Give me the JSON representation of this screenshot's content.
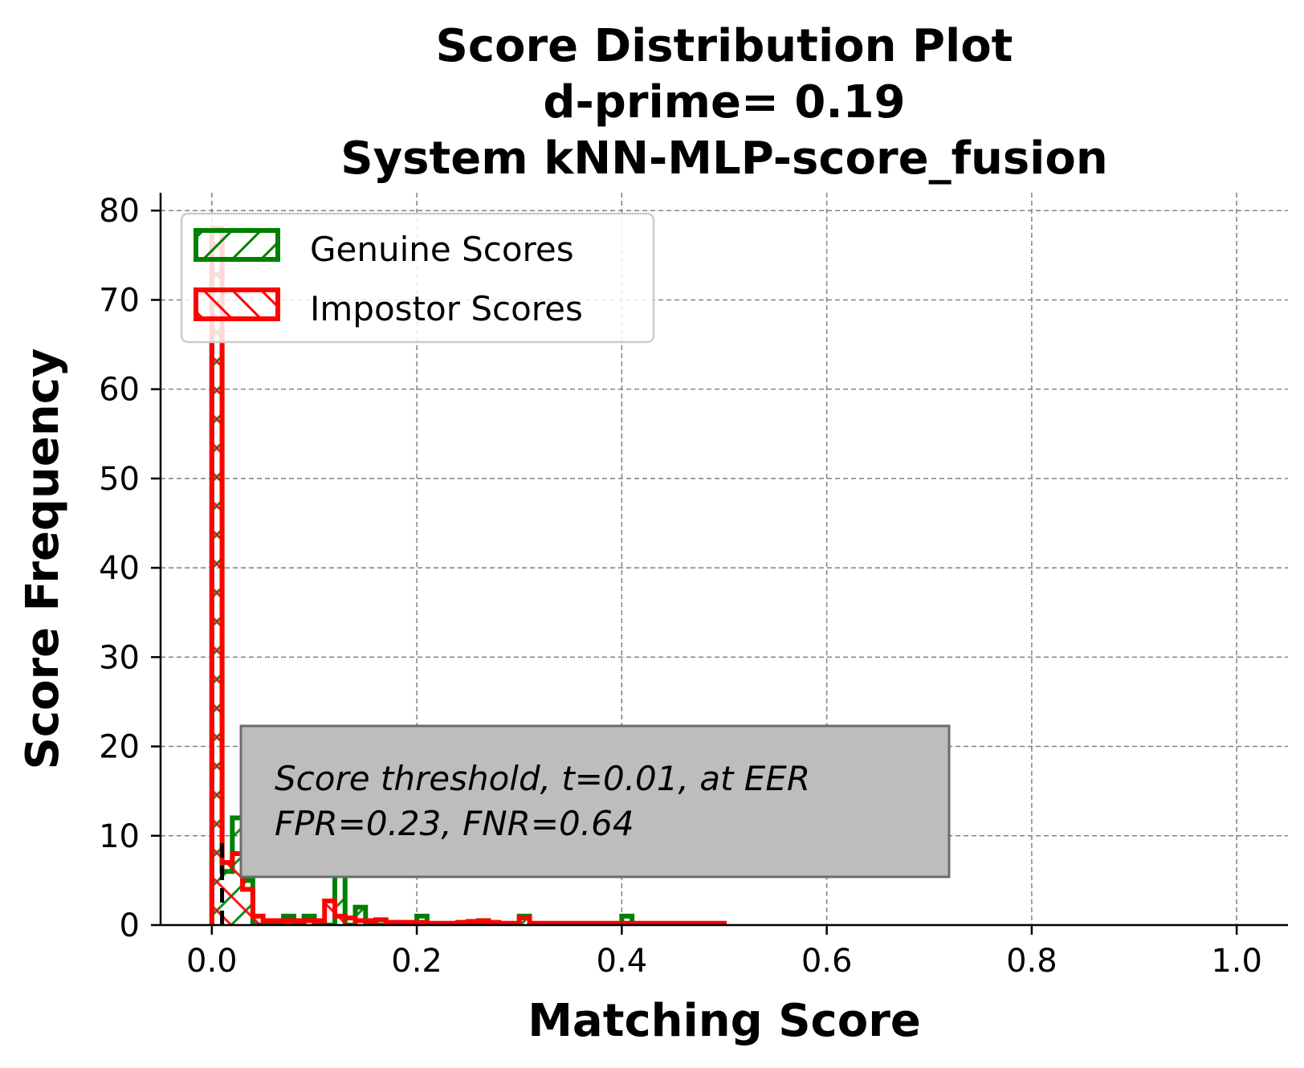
{
  "chart_data": {
    "type": "histogram",
    "title_lines": [
      "Score Distribution Plot",
      "d-prime= 0.19",
      "System kNN-MLP-score_fusion"
    ],
    "xlabel": "Matching Score",
    "ylabel": "Score Frequency",
    "xlim": [
      -0.05,
      1.05
    ],
    "ylim": [
      0,
      82
    ],
    "xticks": [
      "0.0",
      "0.2",
      "0.4",
      "0.6",
      "0.8",
      "1.0"
    ],
    "yticks": [
      "0",
      "10",
      "20",
      "30",
      "40",
      "50",
      "60",
      "70",
      "80"
    ],
    "grid": true,
    "bin_width": 0.01,
    "series": [
      {
        "name": "Genuine Scores",
        "color": "#008000",
        "hatch": "forward-diagonal",
        "x_start": 0.0,
        "values": [
          78,
          6,
          12,
          5,
          0,
          0,
          0,
          1,
          0,
          1,
          0,
          0,
          6,
          0,
          2,
          0,
          0,
          0,
          0,
          0,
          1,
          0,
          0,
          0,
          0,
          0,
          0,
          0,
          0,
          0,
          1,
          0,
          0,
          0,
          0,
          0,
          0,
          0,
          0,
          0,
          1
        ]
      },
      {
        "name": "Impostor Scores",
        "color": "#ff0000",
        "hatch": "back-diagonal",
        "x_start": 0.0,
        "values": [
          78,
          7,
          8,
          4,
          1,
          0.5,
          0.5,
          0.5,
          0.5,
          0.5,
          0.5,
          2.7,
          1,
          0.8,
          0.5,
          0.5,
          0.6,
          0.3,
          0.3,
          0.3,
          0.3,
          0.2,
          0.2,
          0.2,
          0.3,
          0.4,
          0.5,
          0.3,
          0.2,
          0.2,
          0.8,
          0.2,
          0.2,
          0.2,
          0.2,
          0.2,
          0.2,
          0.2,
          0.2,
          0.2,
          0.2,
          0.2,
          0.2,
          0.2,
          0.2,
          0.2,
          0.2,
          0.2,
          0.2,
          0.2
        ]
      }
    ],
    "threshold_line": {
      "x": 0.01,
      "style": "dashed",
      "color": "#000000"
    },
    "annotation": {
      "lines": [
        "Score threshold, t=0.01, at EER",
        "FPR=0.23, FNR=0.64"
      ]
    },
    "legend_position": "upper-left"
  }
}
